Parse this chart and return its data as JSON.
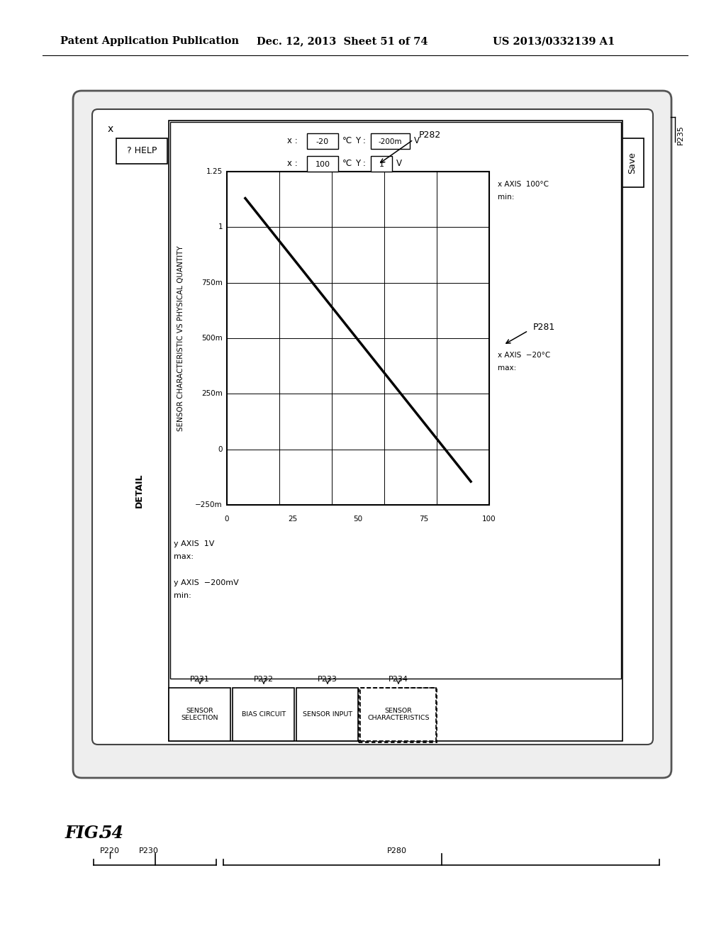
{
  "header_left": "Patent Application Publication",
  "header_mid": "Dec. 12, 2013  Sheet 51 of 74",
  "header_right": "US 2013/0332139 A1",
  "fig_label": "FIG. 54",
  "bg_color": "#ffffff",
  "detail_label": "DETAIL",
  "tab_labels": [
    "SENSOR\nSELECTION",
    "BIAS CIRCUIT",
    "SENSOR INPUT",
    "SENSOR\nCHARACTERISTICS"
  ],
  "chart_title": "SENSOR CHARACTERISTIC VS PHYSICAL QUANTITY",
  "y_axis_label_top": "y AXIS  1V",
  "y_axis_label_top2": "max:",
  "y_axis_label_bot": "y AXIS  −200mV",
  "y_axis_label_bot2": "min:",
  "x_axis_label_right_top": "x AXIS  100°C",
  "x_axis_label_right_top2": "min:",
  "x_axis_label_right_bot": "x AXIS  −20°C",
  "x_axis_label_right_bot2": "max:",
  "y_ticks": [
    "1.25",
    "1",
    "750m",
    "500m",
    "250m",
    "0",
    "−250m"
  ],
  "x_ticks": [
    "0",
    "25",
    "50",
    "75",
    "100"
  ],
  "save_button": "Save",
  "help_button": "? HELP",
  "close_x": "x",
  "p231": "P231",
  "p232": "P232",
  "p233": "P233",
  "p234": "P234",
  "p235": "P235",
  "p220": "P220",
  "p230": "P230",
  "p280": "P280",
  "p281": "P281",
  "p282": "P282"
}
